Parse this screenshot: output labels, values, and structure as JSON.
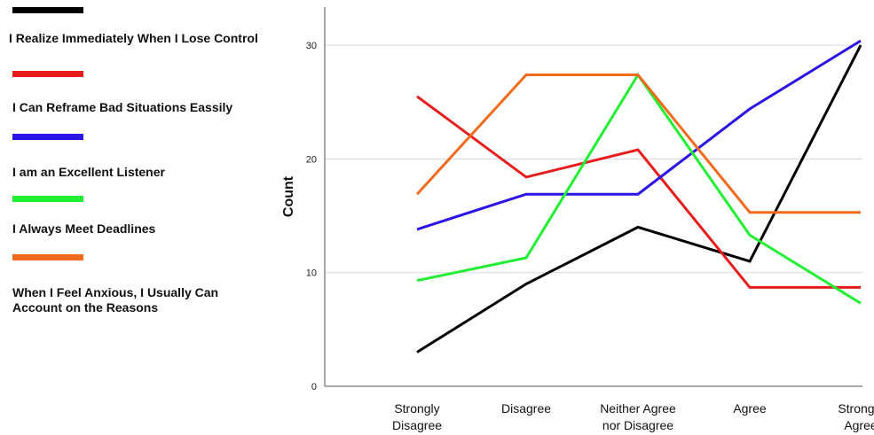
{
  "chart_data": {
    "type": "line",
    "categories": [
      [
        "Strongly",
        "Disagree"
      ],
      [
        "Disagree"
      ],
      [
        "Neither Agree",
        "nor Disagree"
      ],
      [
        "Agree"
      ],
      [
        "Strongly",
        "Agree"
      ]
    ],
    "ylabel": "Count",
    "ylim": [
      0,
      34
    ],
    "yticks": [
      "0",
      "10",
      "20",
      "30"
    ],
    "grid": true,
    "legend_position": "left",
    "series": [
      {
        "name": "I Realize Immediately When I Lose Control",
        "color": "#000000",
        "values": [
          3,
          9,
          14,
          11,
          30
        ]
      },
      {
        "name": "I Can Reframe Bad Situations Eassily",
        "color": "#e81c1c",
        "values": [
          25.5,
          18.4,
          20.8,
          8.7,
          8.7
        ]
      },
      {
        "name": "I am an Excellent Listener",
        "color": "#2a14e6",
        "values": [
          13.8,
          16.9,
          16.9,
          24.4,
          30.4
        ]
      },
      {
        "name": "I Always Meet Deadlines",
        "color": "#22ee33",
        "values": [
          9.3,
          11.3,
          27.4,
          13.3,
          7.3
        ]
      },
      {
        "name": "When I Feel Anxious, I Usually Can Account on the Reasons",
        "color": "#f26b1d",
        "values": [
          16.9,
          27.4,
          27.4,
          15.3,
          15.3
        ]
      }
    ]
  }
}
